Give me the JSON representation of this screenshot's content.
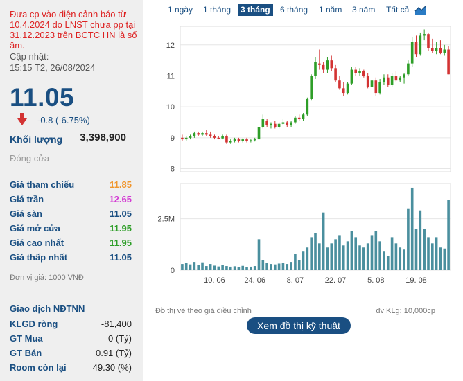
{
  "warning_text": "Đưa cp vào diện cảnh báo từ 10.4.2024 do LNST chưa pp tại 31.12.2023 trên BCTC HN là số âm.",
  "update": {
    "label": "Cập nhật:",
    "time": "15:15 T2, 26/08/2024"
  },
  "price": {
    "value": "11.05",
    "change": "-0.8 (-6.75%)"
  },
  "volume": {
    "label": "Khối lượng",
    "value": "3,398,900"
  },
  "session_status": "Đóng cửa",
  "price_info": [
    {
      "label": "Giá tham chiếu",
      "value": "11.85",
      "color": "#f0962d"
    },
    {
      "label": "Giá trần",
      "value": "12.65",
      "color": "#d33bd3"
    },
    {
      "label": "Giá sàn",
      "value": "11.05",
      "color": "#1a4f82"
    },
    {
      "label": "Giá mở cửa",
      "value": "11.95",
      "color": "#2e9e28"
    },
    {
      "label": "Giá cao nhất",
      "value": "11.95",
      "color": "#2e9e28"
    },
    {
      "label": "Giá thấp nhất",
      "value": "11.05",
      "color": "#1a4f82"
    }
  ],
  "unit_note": "Đơn vị giá: 1000 VNĐ",
  "foreign": {
    "title": "Giao dịch NĐTNN",
    "rows": [
      {
        "label": "KLGD ròng",
        "value": "-81,400"
      },
      {
        "label": "GT Mua",
        "value": "0 (Tỷ)"
      },
      {
        "label": "GT Bán",
        "value": "0.91 (Tỷ)"
      },
      {
        "label": "Room còn lại",
        "value": "49.30 (%)"
      }
    ]
  },
  "tabs": [
    {
      "label": "1 ngày",
      "active": false
    },
    {
      "label": "1 tháng",
      "active": false
    },
    {
      "label": "3 tháng",
      "active": true
    },
    {
      "label": "6 tháng",
      "active": false
    },
    {
      "label": "1 năm",
      "active": false
    },
    {
      "label": "3 năm",
      "active": false
    },
    {
      "label": "Tất cả",
      "active": false
    }
  ],
  "chart_icon": "area-chart-icon",
  "chart_footer": {
    "left": "Đồ thị vẽ theo giá điều chỉnh",
    "right": "đv KLg: 10,000cp"
  },
  "tech_button": "Xem đồ thị kỹ thuật",
  "chart_data": {
    "type": "candlestick",
    "price_axis": {
      "ticks": [
        8,
        9,
        10,
        11,
        12
      ],
      "range": [
        7.9,
        12.6
      ]
    },
    "volume_axis": {
      "ticks": [
        "0",
        "2.5M"
      ],
      "max": 4200000
    },
    "x_ticks": [
      "10. 06",
      "24. 06",
      "8. 07",
      "22. 07",
      "5. 08",
      "19. 08"
    ],
    "x_tick_index": [
      8,
      18,
      28,
      38,
      48,
      58
    ],
    "colors": {
      "up": "#2e9e28",
      "down": "#d33333",
      "volume": "#4a8f9e"
    },
    "candles": [
      {
        "o": 9.0,
        "h": 9.1,
        "l": 8.9,
        "c": 8.95,
        "v": 300000
      },
      {
        "o": 8.95,
        "h": 9.05,
        "l": 8.9,
        "c": 9.0,
        "v": 350000
      },
      {
        "o": 9.0,
        "h": 9.1,
        "l": 8.95,
        "c": 9.05,
        "v": 280000
      },
      {
        "o": 9.05,
        "h": 9.2,
        "l": 9.0,
        "c": 9.15,
        "v": 400000
      },
      {
        "o": 9.15,
        "h": 9.2,
        "l": 9.05,
        "c": 9.1,
        "v": 250000
      },
      {
        "o": 9.1,
        "h": 9.2,
        "l": 9.05,
        "c": 9.15,
        "v": 380000
      },
      {
        "o": 9.15,
        "h": 9.25,
        "l": 9.05,
        "c": 9.1,
        "v": 200000
      },
      {
        "o": 9.1,
        "h": 9.2,
        "l": 9.0,
        "c": 9.05,
        "v": 300000
      },
      {
        "o": 9.05,
        "h": 9.1,
        "l": 8.95,
        "c": 9.0,
        "v": 220000
      },
      {
        "o": 9.0,
        "h": 9.05,
        "l": 8.95,
        "c": 8.98,
        "v": 180000
      },
      {
        "o": 8.98,
        "h": 9.1,
        "l": 8.95,
        "c": 9.05,
        "v": 260000
      },
      {
        "o": 9.05,
        "h": 9.1,
        "l": 8.8,
        "c": 8.85,
        "v": 200000
      },
      {
        "o": 8.85,
        "h": 8.95,
        "l": 8.8,
        "c": 8.9,
        "v": 170000
      },
      {
        "o": 8.9,
        "h": 9.0,
        "l": 8.85,
        "c": 8.95,
        "v": 190000
      },
      {
        "o": 8.95,
        "h": 9.0,
        "l": 8.85,
        "c": 8.9,
        "v": 160000
      },
      {
        "o": 8.9,
        "h": 8.98,
        "l": 8.85,
        "c": 8.95,
        "v": 210000
      },
      {
        "o": 8.95,
        "h": 9.0,
        "l": 8.85,
        "c": 8.9,
        "v": 150000
      },
      {
        "o": 8.9,
        "h": 8.95,
        "l": 8.85,
        "c": 8.92,
        "v": 170000
      },
      {
        "o": 8.92,
        "h": 9.0,
        "l": 8.88,
        "c": 8.95,
        "v": 200000
      },
      {
        "o": 8.95,
        "h": 9.4,
        "l": 8.95,
        "c": 9.35,
        "v": 1500000
      },
      {
        "o": 9.35,
        "h": 9.75,
        "l": 9.3,
        "c": 9.6,
        "v": 500000
      },
      {
        "o": 9.55,
        "h": 9.6,
        "l": 9.35,
        "c": 9.4,
        "v": 350000
      },
      {
        "o": 9.4,
        "h": 9.5,
        "l": 9.3,
        "c": 9.45,
        "v": 300000
      },
      {
        "o": 9.45,
        "h": 9.55,
        "l": 9.3,
        "c": 9.35,
        "v": 280000
      },
      {
        "o": 9.35,
        "h": 9.5,
        "l": 9.3,
        "c": 9.45,
        "v": 320000
      },
      {
        "o": 9.45,
        "h": 9.6,
        "l": 9.4,
        "c": 9.5,
        "v": 350000
      },
      {
        "o": 9.5,
        "h": 9.55,
        "l": 9.35,
        "c": 9.4,
        "v": 300000
      },
      {
        "o": 9.4,
        "h": 9.55,
        "l": 9.35,
        "c": 9.5,
        "v": 400000
      },
      {
        "o": 9.5,
        "h": 9.7,
        "l": 9.45,
        "c": 9.65,
        "v": 800000
      },
      {
        "o": 9.65,
        "h": 9.75,
        "l": 9.55,
        "c": 9.6,
        "v": 500000
      },
      {
        "o": 9.6,
        "h": 9.8,
        "l": 9.55,
        "c": 9.75,
        "v": 900000
      },
      {
        "o": 9.75,
        "h": 10.3,
        "l": 9.7,
        "c": 10.25,
        "v": 1100000
      },
      {
        "o": 10.25,
        "h": 11.05,
        "l": 10.2,
        "c": 11.0,
        "v": 1600000
      },
      {
        "o": 11.0,
        "h": 11.6,
        "l": 10.9,
        "c": 11.45,
        "v": 1800000
      },
      {
        "o": 11.4,
        "h": 11.85,
        "l": 11.2,
        "c": 11.35,
        "v": 1300000
      },
      {
        "o": 11.35,
        "h": 11.45,
        "l": 11.1,
        "c": 11.2,
        "v": 2800000
      },
      {
        "o": 11.2,
        "h": 11.6,
        "l": 11.1,
        "c": 11.5,
        "v": 1100000
      },
      {
        "o": 11.5,
        "h": 11.65,
        "l": 11.15,
        "c": 11.25,
        "v": 1300000
      },
      {
        "o": 11.25,
        "h": 11.35,
        "l": 10.8,
        "c": 10.85,
        "v": 1500000
      },
      {
        "o": 10.85,
        "h": 11.0,
        "l": 10.55,
        "c": 10.6,
        "v": 1700000
      },
      {
        "o": 10.6,
        "h": 10.8,
        "l": 10.35,
        "c": 10.45,
        "v": 1200000
      },
      {
        "o": 10.45,
        "h": 10.8,
        "l": 10.4,
        "c": 10.75,
        "v": 1400000
      },
      {
        "o": 10.75,
        "h": 11.3,
        "l": 10.7,
        "c": 11.2,
        "v": 1900000
      },
      {
        "o": 11.2,
        "h": 11.3,
        "l": 11.0,
        "c": 11.1,
        "v": 1600000
      },
      {
        "o": 11.1,
        "h": 11.25,
        "l": 11.0,
        "c": 11.15,
        "v": 1200000
      },
      {
        "o": 11.15,
        "h": 11.2,
        "l": 10.95,
        "c": 11.0,
        "v": 1100000
      },
      {
        "o": 11.0,
        "h": 11.1,
        "l": 10.6,
        "c": 10.65,
        "v": 1300000
      },
      {
        "o": 10.65,
        "h": 10.95,
        "l": 10.6,
        "c": 10.85,
        "v": 1700000
      },
      {
        "o": 10.85,
        "h": 10.95,
        "l": 10.35,
        "c": 10.45,
        "v": 1900000
      },
      {
        "o": 10.45,
        "h": 10.9,
        "l": 10.4,
        "c": 10.8,
        "v": 1400000
      },
      {
        "o": 10.8,
        "h": 11.05,
        "l": 10.7,
        "c": 10.95,
        "v": 900000
      },
      {
        "o": 10.95,
        "h": 11.05,
        "l": 10.65,
        "c": 10.7,
        "v": 700000
      },
      {
        "o": 10.7,
        "h": 11.1,
        "l": 10.65,
        "c": 11.0,
        "v": 1600000
      },
      {
        "o": 11.0,
        "h": 11.15,
        "l": 10.8,
        "c": 10.85,
        "v": 1300000
      },
      {
        "o": 10.85,
        "h": 11.0,
        "l": 10.8,
        "c": 10.95,
        "v": 1100000
      },
      {
        "o": 10.95,
        "h": 11.1,
        "l": 10.75,
        "c": 11.05,
        "v": 1000000
      },
      {
        "o": 11.05,
        "h": 11.5,
        "l": 11.0,
        "c": 11.4,
        "v": 3000000
      },
      {
        "o": 11.4,
        "h": 12.25,
        "l": 11.3,
        "c": 12.1,
        "v": 4000000
      },
      {
        "o": 12.1,
        "h": 12.3,
        "l": 11.6,
        "c": 11.7,
        "v": 2000000
      },
      {
        "o": 11.7,
        "h": 12.4,
        "l": 11.65,
        "c": 12.3,
        "v": 2900000
      },
      {
        "o": 12.3,
        "h": 12.5,
        "l": 12.15,
        "c": 12.35,
        "v": 2000000
      },
      {
        "o": 12.35,
        "h": 12.4,
        "l": 11.8,
        "c": 11.9,
        "v": 1600000
      },
      {
        "o": 11.9,
        "h": 12.2,
        "l": 11.75,
        "c": 11.8,
        "v": 1300000
      },
      {
        "o": 11.8,
        "h": 12.1,
        "l": 11.7,
        "c": 11.9,
        "v": 1600000
      },
      {
        "o": 11.9,
        "h": 12.15,
        "l": 11.7,
        "c": 11.75,
        "v": 1100000
      },
      {
        "o": 11.75,
        "h": 12.0,
        "l": 11.65,
        "c": 11.85,
        "v": 1050000
      },
      {
        "o": 11.85,
        "h": 11.95,
        "l": 11.05,
        "c": 11.05,
        "v": 3398900
      }
    ]
  }
}
